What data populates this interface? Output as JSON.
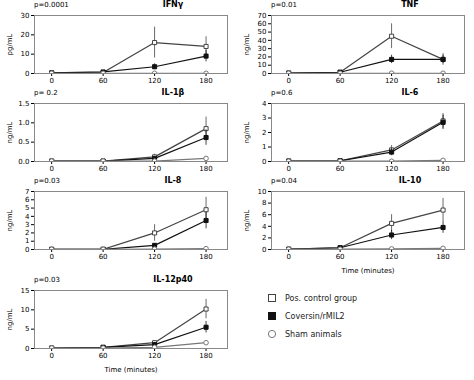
{
  "chart_data": [
    {
      "type": "line",
      "title": "IFNγ",
      "ylabel": "pg/mL",
      "annotations": [
        "p=0.0001"
      ],
      "x": [
        0,
        60,
        120,
        180
      ],
      "xlim": [
        -20,
        205
      ],
      "xticks": [
        0,
        60,
        120,
        180
      ],
      "ylim": [
        0,
        30
      ],
      "yticks": [
        0,
        10,
        20,
        30
      ],
      "grid": false,
      "series": [
        {
          "name": "Pos. control group",
          "color": "#444444",
          "marker": "square-open",
          "values": [
            0.3,
            0.5,
            16.0,
            14.0
          ],
          "yerr": [
            0.1,
            0.2,
            8.0,
            5.0
          ]
        },
        {
          "name": "Coversin/rMIL2",
          "color": "#111111",
          "marker": "square",
          "values": [
            0.3,
            0.8,
            3.5,
            9.0
          ],
          "yerr": [
            0.1,
            0.3,
            1.5,
            3.0
          ]
        },
        {
          "name": "Sham animals",
          "color": "#777777",
          "marker": "circle-open",
          "values": [
            0.1,
            0.1,
            0.1,
            0.1
          ],
          "yerr": [
            0.05,
            0.05,
            0.05,
            0.05
          ]
        }
      ]
    },
    {
      "type": "line",
      "title": "TNF",
      "ylabel": "ng/mL",
      "annotations": [
        "p=0.01"
      ],
      "x": [
        0,
        60,
        120,
        180
      ],
      "xlim": [
        -20,
        205
      ],
      "xticks": [
        0,
        60,
        120,
        180
      ],
      "ylim": [
        0,
        70
      ],
      "yticks": [
        0,
        10,
        20,
        30,
        40,
        50,
        60,
        70
      ],
      "grid": false,
      "series": [
        {
          "name": "Pos. control group",
          "color": "#444444",
          "marker": "square-open",
          "values": [
            0.5,
            1.5,
            45.0,
            17.0
          ],
          "yerr": [
            0.2,
            0.8,
            15.0,
            7.0
          ]
        },
        {
          "name": "Coversin/rMIL2",
          "color": "#111111",
          "marker": "square",
          "values": [
            0.5,
            1.5,
            17.0,
            17.0
          ],
          "yerr": [
            0.2,
            0.8,
            5.0,
            5.0
          ]
        },
        {
          "name": "Sham animals",
          "color": "#777777",
          "marker": "circle-open",
          "values": [
            0.3,
            0.3,
            0.3,
            0.3
          ],
          "yerr": [
            0.1,
            0.1,
            0.1,
            0.1
          ]
        }
      ]
    },
    {
      "type": "line",
      "title": "IL-1β",
      "ylabel": "ng/mL",
      "annotations": [
        "p= 0.2"
      ],
      "x": [
        0,
        60,
        120,
        180
      ],
      "xlim": [
        -20,
        205
      ],
      "xticks": [
        0,
        60,
        120,
        180
      ],
      "ylim": [
        0,
        1.5
      ],
      "yticks": [
        {
          "value": 0,
          "label": "0.0"
        },
        0.5,
        {
          "value": 1,
          "label": "1.0"
        },
        1.5
      ],
      "grid": false,
      "series": [
        {
          "name": "Pos. control group",
          "color": "#444444",
          "marker": "square-open",
          "values": [
            0.01,
            0.01,
            0.12,
            0.85
          ],
          "yerr": [
            0.005,
            0.005,
            0.07,
            0.3
          ]
        },
        {
          "name": "Coversin/rMIL2",
          "color": "#111111",
          "marker": "square",
          "values": [
            0.01,
            0.01,
            0.08,
            0.62
          ],
          "yerr": [
            0.005,
            0.005,
            0.04,
            0.2
          ]
        },
        {
          "name": "Sham animals",
          "color": "#777777",
          "marker": "circle-open",
          "values": [
            0.01,
            0.01,
            0.01,
            0.08
          ],
          "yerr": [
            0.005,
            0.005,
            0.005,
            0.02
          ]
        }
      ]
    },
    {
      "type": "line",
      "title": "IL-6",
      "ylabel": "ng/mL",
      "annotations": [
        "p=0.6"
      ],
      "x": [
        0,
        60,
        120,
        180
      ],
      "xlim": [
        -20,
        205
      ],
      "xticks": [
        0,
        60,
        120,
        180
      ],
      "ylim": [
        0,
        4
      ],
      "yticks": [
        0,
        1,
        2,
        3,
        4
      ],
      "grid": false,
      "series": [
        {
          "name": "Pos. control group",
          "color": "#444444",
          "marker": "square-open",
          "values": [
            0.03,
            0.05,
            0.8,
            2.8
          ],
          "yerr": [
            0.01,
            0.02,
            0.3,
            0.5
          ]
        },
        {
          "name": "Coversin/rMIL2",
          "color": "#111111",
          "marker": "square",
          "values": [
            0.03,
            0.05,
            0.65,
            2.7
          ],
          "yerr": [
            0.01,
            0.02,
            0.25,
            0.5
          ]
        },
        {
          "name": "Sham animals",
          "color": "#777777",
          "marker": "circle-open",
          "values": [
            0.02,
            0.02,
            0.02,
            0.08
          ],
          "yerr": [
            0.01,
            0.01,
            0.01,
            0.03
          ]
        }
      ]
    },
    {
      "type": "line",
      "title": "IL-8",
      "ylabel": "ng/mL",
      "annotations": [
        "p=0.03"
      ],
      "x": [
        0,
        60,
        120,
        180
      ],
      "xlim": [
        -20,
        205
      ],
      "xticks": [
        0,
        60,
        120,
        180
      ],
      "ylim": [
        0,
        7
      ],
      "yticks": [
        0,
        1,
        2,
        3,
        4,
        5,
        6,
        7
      ],
      "grid": false,
      "series": [
        {
          "name": "Pos. control group",
          "color": "#444444",
          "marker": "square-open",
          "values": [
            0.02,
            0.02,
            2.0,
            4.8
          ],
          "yerr": [
            0.01,
            0.01,
            1.0,
            1.5
          ]
        },
        {
          "name": "Coversin/rMIL2",
          "color": "#111111",
          "marker": "square",
          "values": [
            0.02,
            0.02,
            0.5,
            3.5
          ],
          "yerr": [
            0.01,
            0.01,
            0.2,
            1.0
          ]
        },
        {
          "name": "Sham animals",
          "color": "#777777",
          "marker": "circle-open",
          "values": [
            0.02,
            0.02,
            0.05,
            0.1
          ],
          "yerr": [
            0.01,
            0.01,
            0.02,
            0.05
          ]
        }
      ]
    },
    {
      "type": "line",
      "title": "IL-10",
      "ylabel": "ng/mL",
      "xlabel": "Time (minutes)",
      "annotations": [
        "p=0.04"
      ],
      "x": [
        0,
        60,
        120,
        180
      ],
      "xlim": [
        -20,
        205
      ],
      "xticks": [
        0,
        60,
        120,
        180
      ],
      "ylim": [
        0,
        10
      ],
      "yticks": [
        0,
        2,
        4,
        6,
        8,
        10
      ],
      "grid": false,
      "series": [
        {
          "name": "Pos. control group",
          "color": "#444444",
          "marker": "square-open",
          "values": [
            0.05,
            0.3,
            4.5,
            6.8
          ],
          "yerr": [
            0.02,
            0.1,
            1.5,
            2.0
          ]
        },
        {
          "name": "Coversin/rMIL2",
          "color": "#111111",
          "marker": "square",
          "values": [
            0.05,
            0.3,
            2.5,
            3.8
          ],
          "yerr": [
            0.02,
            0.1,
            0.8,
            1.0
          ]
        },
        {
          "name": "Sham animals",
          "color": "#777777",
          "marker": "circle-open",
          "values": [
            0.05,
            0.05,
            0.1,
            0.2
          ],
          "yerr": [
            0.02,
            0.02,
            0.05,
            0.08
          ]
        }
      ]
    },
    {
      "type": "line",
      "title": "IL-12p40",
      "ylabel": "ng/mL",
      "xlabel": "Time (minutes)",
      "annotations": [
        "p=0.03"
      ],
      "x": [
        0,
        60,
        120,
        180
      ],
      "xlim": [
        -20,
        205
      ],
      "xticks": [
        0,
        60,
        120,
        180
      ],
      "ylim": [
        0,
        15
      ],
      "yticks": [
        0,
        5,
        10,
        15
      ],
      "grid": false,
      "legend": "lower right",
      "series": [
        {
          "name": "Pos. control group",
          "color": "#444444",
          "marker": "square-open",
          "values": [
            0.1,
            0.3,
            1.5,
            10.2
          ],
          "yerr": [
            0.05,
            0.1,
            0.5,
            2.5
          ]
        },
        {
          "name": "Coversin/rMIL2",
          "color": "#111111",
          "marker": "square",
          "values": [
            0.1,
            0.3,
            1.0,
            5.5
          ],
          "yerr": [
            0.05,
            0.1,
            0.4,
            1.5
          ]
        },
        {
          "name": "Sham animals",
          "color": "#777777",
          "marker": "circle-open",
          "values": [
            0.1,
            0.1,
            0.3,
            1.5
          ],
          "yerr": [
            0.03,
            0.05,
            0.1,
            0.5
          ]
        }
      ]
    }
  ]
}
